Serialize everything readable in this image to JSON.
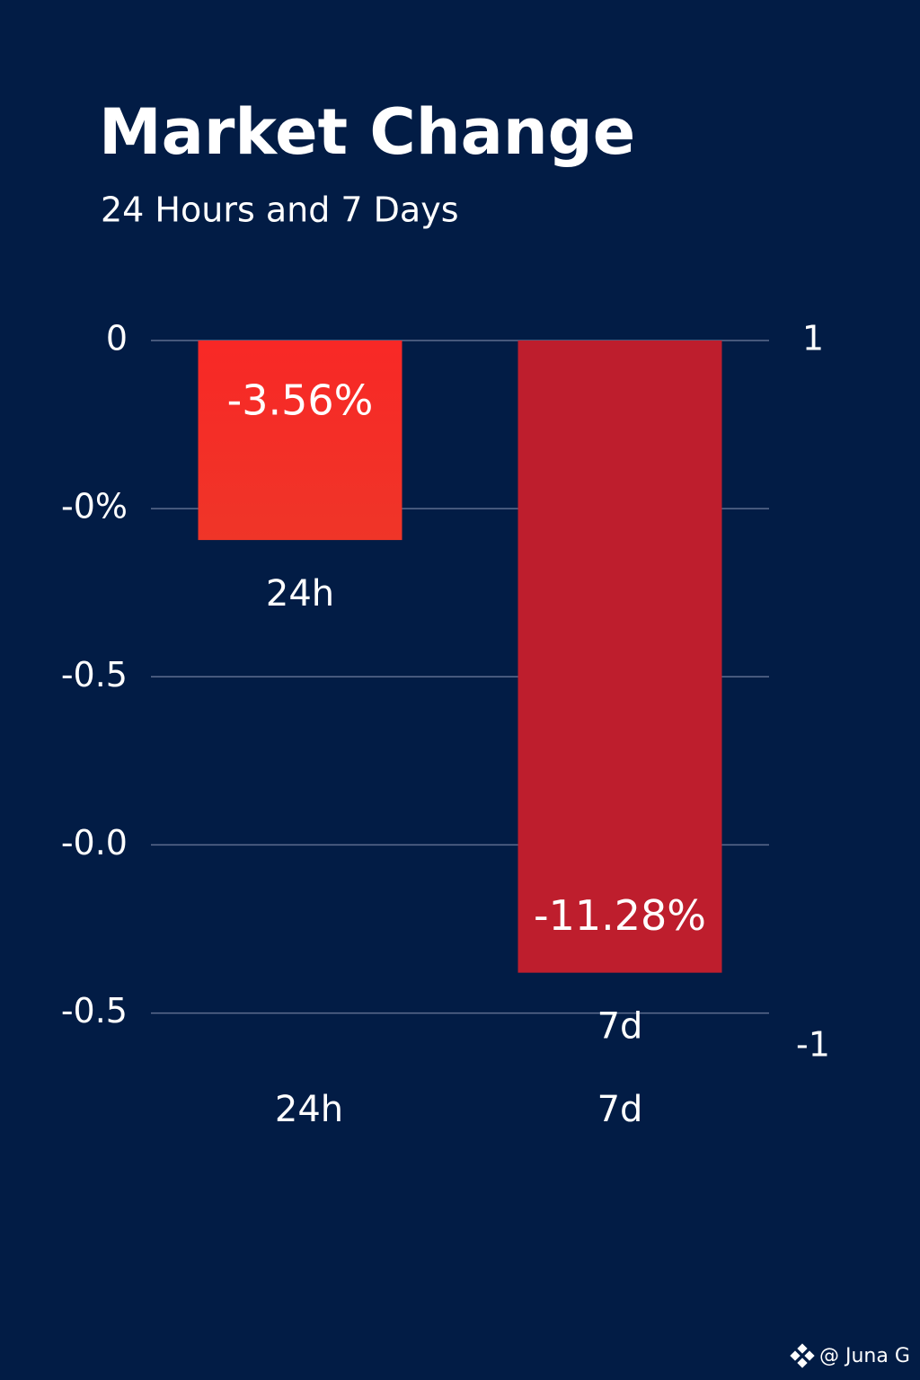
{
  "chart_data": {
    "type": "bar",
    "title": "Market Change",
    "subtitle": "24 Hours and 7 Days",
    "categories": [
      "24h",
      "7d"
    ],
    "values": [
      -3.56,
      -11.28
    ],
    "value_labels": [
      "-3.56%",
      "-11.28%"
    ],
    "colors": [
      "#f52a27",
      "#be1e2d"
    ],
    "ylim": [
      -12.6,
      0
    ],
    "yticks": [
      0,
      {
        "value": -3,
        "label": "-0%"
      },
      {
        "value": -6,
        "label": "-0.5"
      },
      {
        "value": -9,
        "label": "-0.0"
      },
      {
        "value": -12,
        "label": "-0.5"
      }
    ],
    "y2lim": [
      -1,
      1
    ],
    "y2ticks": [
      1,
      -1
    ],
    "grid": true,
    "footer": "@ Juna G"
  }
}
